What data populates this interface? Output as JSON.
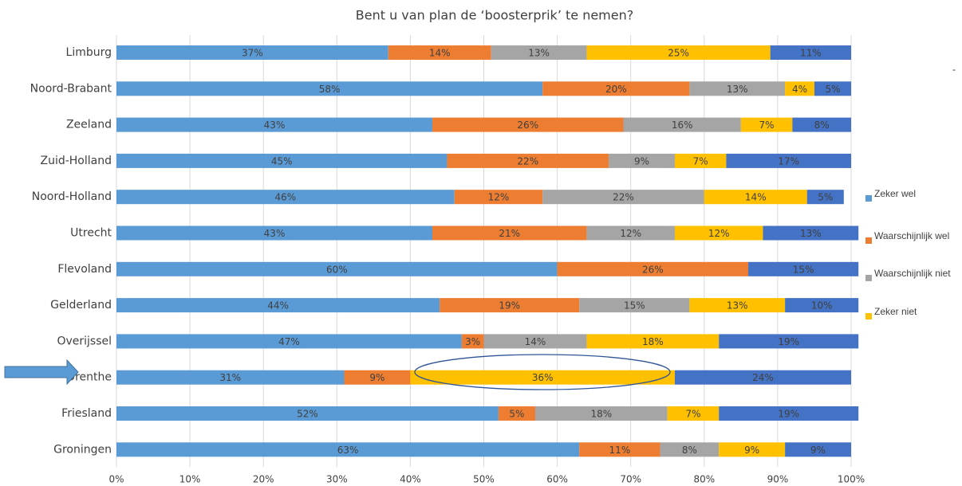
{
  "chart_data": {
    "type": "stacked-bar-horizontal",
    "title": "Bent u van plan de ‘boosterprik’ te nemen?",
    "annotation": "-",
    "categories": [
      "Limburg",
      "Noord-Brabant",
      "Zeeland",
      "Zuid-Holland",
      "Noord-Holland",
      "Utrecht",
      "Flevoland",
      "Gelderland",
      "Overijssel",
      "Drenthe",
      "Friesland",
      "Groningen"
    ],
    "series": [
      {
        "name": "Zeker wel",
        "color": "#5b9bd5",
        "values": [
          37,
          58,
          43,
          45,
          46,
          43,
          60,
          44,
          47,
          31,
          52,
          63
        ],
        "value_labels": [
          "37%",
          "58%",
          "43%",
          "45%",
          "46%",
          "43%",
          "60%",
          "44%",
          "47%",
          "31%",
          "52%",
          "63%"
        ]
      },
      {
        "name": "Waarschijnlijk wel",
        "color": "#ed7d31",
        "values": [
          14,
          20,
          26,
          22,
          12,
          21,
          26,
          19,
          3,
          9,
          5,
          11
        ],
        "value_labels": [
          "14%",
          "20%",
          "26%",
          "22%",
          "12%",
          "21%",
          "26%",
          "19%",
          "3%",
          "9%",
          "5%",
          "11%"
        ]
      },
      {
        "name": "Waarschijnlijk niet",
        "color": "#a5a5a5",
        "values": [
          13,
          13,
          16,
          9,
          22,
          12,
          null,
          15,
          14,
          null,
          18,
          8
        ],
        "value_labels": [
          "13%",
          "13%",
          "16%",
          "9%",
          "22%",
          "12%",
          null,
          "15%",
          "14%",
          null,
          "18%",
          "8%"
        ]
      },
      {
        "name": "Zeker niet",
        "color": "#ffc000",
        "values": [
          25,
          4,
          7,
          7,
          14,
          12,
          null,
          13,
          18,
          36,
          7,
          9
        ],
        "value_labels": [
          "25%",
          "4%",
          "7%",
          "7%",
          "14%",
          "12%",
          null,
          "13%",
          "18%",
          "36%",
          "7%",
          "9%"
        ]
      },
      {
        "name": null,
        "color": "#4472c4",
        "values": [
          11,
          5,
          8,
          17,
          5,
          13,
          15,
          10,
          19,
          24,
          19,
          9
        ],
        "value_labels": [
          "11%",
          "5%",
          "8%",
          "17%",
          "5%",
          "13%",
          "15%",
          "10%",
          "19%",
          "24%",
          "19%",
          "9%"
        ]
      }
    ],
    "xlim": [
      0,
      100
    ],
    "xticks": [
      {
        "value": 0,
        "label": "0%"
      },
      {
        "value": 10,
        "label": "10%"
      },
      {
        "value": 20,
        "label": "20%"
      },
      {
        "value": 30,
        "label": "30%"
      },
      {
        "value": 40,
        "label": "40%"
      },
      {
        "value": 50,
        "label": "50%"
      },
      {
        "value": 60,
        "label": "60%"
      },
      {
        "value": 70,
        "label": "70%"
      },
      {
        "value": 80,
        "label": "80%"
      },
      {
        "value": 90,
        "label": "90%"
      },
      {
        "value": 100,
        "label": "100%"
      }
    ],
    "grid": true,
    "legend": "right"
  }
}
